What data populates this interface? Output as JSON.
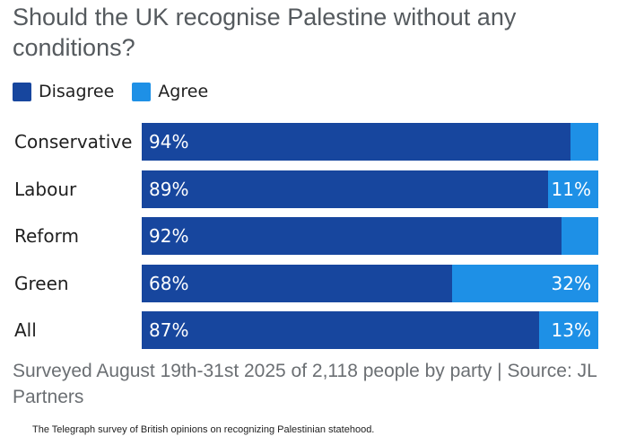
{
  "colors": {
    "disagree": "#17469e",
    "agree": "#1e90e6"
  },
  "legend": {
    "disagree_label": "Disagree",
    "agree_label": "Agree"
  },
  "footer_text": "Surveyed August 19th-31st 2025 of 2,118 people by party | Source: JL Partners",
  "caption": "The Telegraph survey of British opinions on recognizing Palestinian statehood.",
  "chart_data": {
    "type": "bar",
    "orientation": "horizontal",
    "stacked": true,
    "title": "Should the UK recognise Palestine without any conditions?",
    "categories": [
      "Conservative",
      "Labour",
      "Reform",
      "Green",
      "All"
    ],
    "series": [
      {
        "name": "Disagree",
        "values": [
          94,
          89,
          92,
          68,
          87
        ],
        "labels": [
          "94%",
          "89%",
          "92%",
          "68%",
          "87%"
        ]
      },
      {
        "name": "Agree",
        "values": [
          6,
          11,
          8,
          32,
          13
        ],
        "labels": [
          "",
          "11%",
          "",
          "32%",
          "13%"
        ]
      }
    ],
    "xlim": [
      0,
      100
    ],
    "legend_position": "top-left",
    "grid": false
  }
}
